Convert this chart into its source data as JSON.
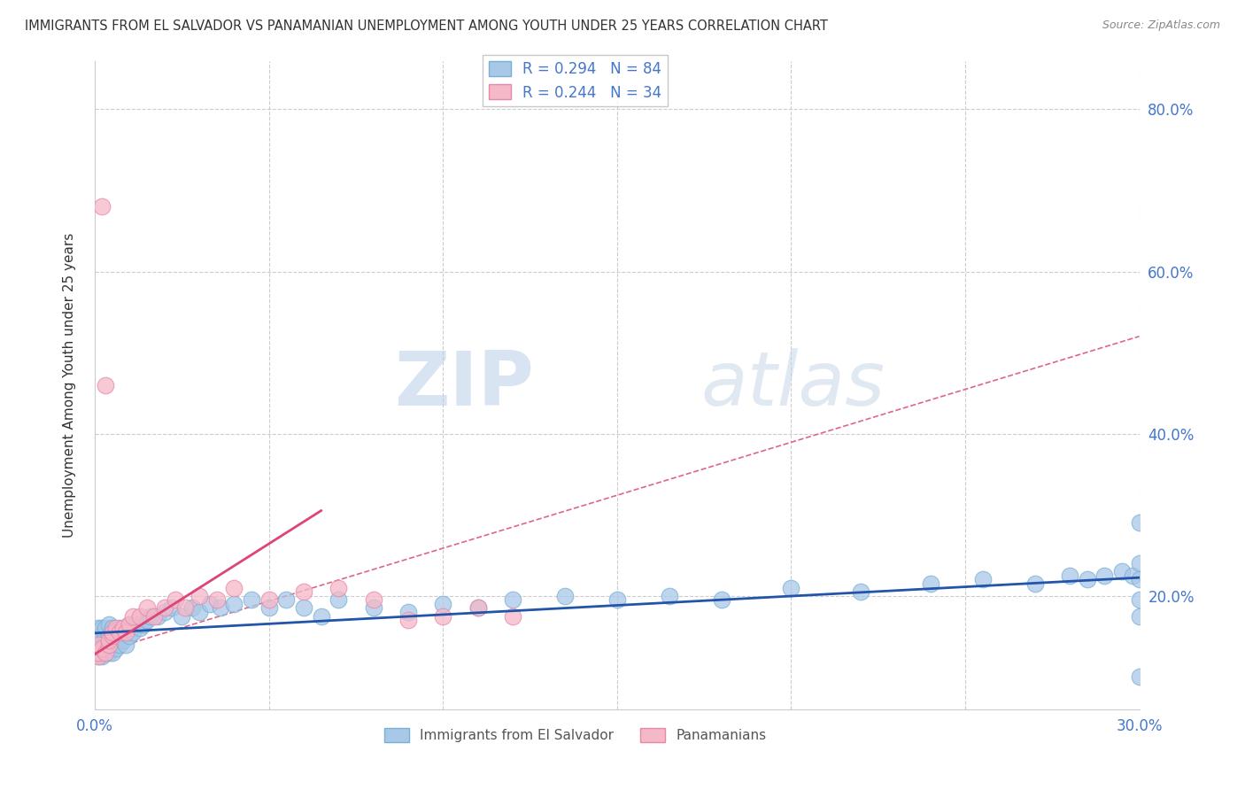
{
  "title": "IMMIGRANTS FROM EL SALVADOR VS PANAMANIAN UNEMPLOYMENT AMONG YOUTH UNDER 25 YEARS CORRELATION CHART",
  "source": "Source: ZipAtlas.com",
  "ylabel": "Unemployment Among Youth under 25 years",
  "xlim": [
    0.0,
    0.3
  ],
  "ylim": [
    0.06,
    0.86
  ],
  "xticks": [
    0.0,
    0.05,
    0.1,
    0.15,
    0.2,
    0.25,
    0.3
  ],
  "xtick_labels_show": [
    true,
    false,
    false,
    false,
    false,
    false,
    true
  ],
  "ytick_vals": [
    0.2,
    0.4,
    0.6,
    0.8
  ],
  "ytick_labels": [
    "20.0%",
    "40.0%",
    "60.0%",
    "80.0%"
  ],
  "blue_color": "#a8c8e8",
  "blue_edge_color": "#7aafd4",
  "pink_color": "#f4b8c8",
  "pink_edge_color": "#e888a8",
  "blue_line_color": "#2255aa",
  "pink_line_color": "#dd4477",
  "dashed_line_color": "#dd6688",
  "grid_color": "#cccccc",
  "text_color": "#4477cc",
  "label_color": "#555555",
  "R_blue": 0.294,
  "N_blue": 84,
  "R_pink": 0.244,
  "N_pink": 34,
  "watermark_zip": "ZIP",
  "watermark_atlas": "atlas",
  "blue_scatter_x": [
    0.001,
    0.001,
    0.001,
    0.001,
    0.001,
    0.001,
    0.002,
    0.002,
    0.002,
    0.002,
    0.002,
    0.002,
    0.003,
    0.003,
    0.003,
    0.003,
    0.003,
    0.004,
    0.004,
    0.004,
    0.004,
    0.004,
    0.005,
    0.005,
    0.005,
    0.005,
    0.006,
    0.006,
    0.006,
    0.007,
    0.007,
    0.007,
    0.008,
    0.008,
    0.009,
    0.009,
    0.01,
    0.01,
    0.011,
    0.012,
    0.013,
    0.014,
    0.015,
    0.016,
    0.018,
    0.02,
    0.022,
    0.025,
    0.028,
    0.03,
    0.033,
    0.036,
    0.04,
    0.045,
    0.05,
    0.055,
    0.06,
    0.065,
    0.07,
    0.08,
    0.09,
    0.1,
    0.11,
    0.12,
    0.135,
    0.15,
    0.165,
    0.18,
    0.2,
    0.22,
    0.24,
    0.255,
    0.27,
    0.28,
    0.285,
    0.29,
    0.295,
    0.298,
    0.3,
    0.3,
    0.3,
    0.3,
    0.3,
    0.3
  ],
  "blue_scatter_y": [
    0.125,
    0.13,
    0.14,
    0.145,
    0.15,
    0.16,
    0.125,
    0.13,
    0.135,
    0.14,
    0.15,
    0.16,
    0.13,
    0.135,
    0.14,
    0.15,
    0.16,
    0.13,
    0.135,
    0.14,
    0.15,
    0.165,
    0.13,
    0.14,
    0.15,
    0.16,
    0.135,
    0.145,
    0.155,
    0.14,
    0.15,
    0.16,
    0.145,
    0.155,
    0.14,
    0.155,
    0.15,
    0.165,
    0.155,
    0.165,
    0.16,
    0.165,
    0.17,
    0.175,
    0.175,
    0.18,
    0.185,
    0.175,
    0.185,
    0.18,
    0.19,
    0.185,
    0.19,
    0.195,
    0.185,
    0.195,
    0.185,
    0.175,
    0.195,
    0.185,
    0.18,
    0.19,
    0.185,
    0.195,
    0.2,
    0.195,
    0.2,
    0.195,
    0.21,
    0.205,
    0.215,
    0.22,
    0.215,
    0.225,
    0.22,
    0.225,
    0.23,
    0.225,
    0.24,
    0.22,
    0.195,
    0.175,
    0.1,
    0.29
  ],
  "pink_scatter_x": [
    0.001,
    0.001,
    0.001,
    0.002,
    0.002,
    0.003,
    0.003,
    0.004,
    0.004,
    0.005,
    0.005,
    0.006,
    0.007,
    0.008,
    0.009,
    0.01,
    0.011,
    0.013,
    0.015,
    0.017,
    0.02,
    0.023,
    0.026,
    0.03,
    0.035,
    0.04,
    0.05,
    0.06,
    0.07,
    0.08,
    0.09,
    0.1,
    0.11,
    0.12
  ],
  "pink_scatter_y": [
    0.125,
    0.13,
    0.14,
    0.135,
    0.68,
    0.13,
    0.46,
    0.14,
    0.145,
    0.15,
    0.155,
    0.16,
    0.155,
    0.16,
    0.155,
    0.165,
    0.175,
    0.175,
    0.185,
    0.175,
    0.185,
    0.195,
    0.185,
    0.2,
    0.195,
    0.21,
    0.195,
    0.205,
    0.21,
    0.195,
    0.17,
    0.175,
    0.185,
    0.175
  ]
}
